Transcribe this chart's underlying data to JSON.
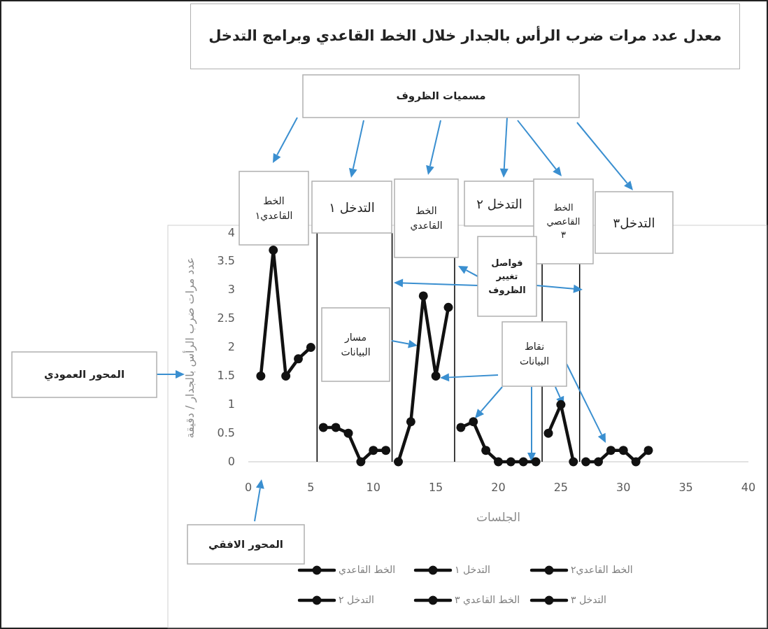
{
  "chart_data": {
    "type": "line",
    "title": "معدل عدد مرات ضرب الرأس بالجدار خلال الخط القاعدي وبرامج التدخل",
    "xlabel": "الجلسات",
    "ylabel": "عدد مرات ضرب الرأس بالجدار / دقيقة",
    "xlim": [
      0,
      40
    ],
    "xticks": [
      0,
      5,
      10,
      15,
      20,
      25,
      30,
      35,
      40
    ],
    "ylim": [
      0,
      4
    ],
    "yticks": [
      0,
      0.5,
      1,
      1.5,
      2,
      2.5,
      3,
      3.5,
      4
    ],
    "series": [
      {
        "name": "الخط القاعدي",
        "color": "#111111",
        "x": [
          1,
          2,
          3,
          4,
          5
        ],
        "values": [
          1.5,
          3.7,
          1.5,
          1.8,
          2
        ]
      },
      {
        "name": "التدخل ١",
        "color": "#111111",
        "x": [
          6,
          7,
          8,
          9,
          10,
          11
        ],
        "values": [
          0.6,
          0.6,
          0.5,
          0,
          0.2,
          0.2
        ]
      },
      {
        "name": "الخط القاعدي٢",
        "color": "#111111",
        "x": [
          12,
          13,
          14,
          15,
          16
        ],
        "values": [
          0,
          0.7,
          2.9,
          1.5,
          2.7
        ]
      },
      {
        "name": "التدخل ٢",
        "color": "#111111",
        "x": [
          17,
          18,
          19,
          20,
          21,
          22,
          23
        ],
        "values": [
          0.6,
          0.7,
          0.2,
          0,
          0,
          0,
          0
        ]
      },
      {
        "name": "الخط القاعدي ٣",
        "color": "#111111",
        "x": [
          24,
          25,
          26
        ],
        "values": [
          0.5,
          1,
          0
        ]
      },
      {
        "name": "التدخل ٣",
        "color": "#111111",
        "x": [
          27,
          28,
          29,
          30,
          31,
          32
        ],
        "values": [
          0,
          0,
          0.2,
          0.2,
          0,
          0.2
        ]
      }
    ],
    "ref_lines": [
      {
        "axis": "x",
        "value": 5.5,
        "color": "#000000"
      },
      {
        "axis": "x",
        "value": 11.5,
        "color": "#000000"
      },
      {
        "axis": "x",
        "value": 16.5,
        "color": "#000000"
      },
      {
        "axis": "x",
        "value": 23.5,
        "color": "#000000"
      },
      {
        "axis": "x",
        "value": 26.5,
        "color": "#000000"
      }
    ],
    "annotations": [
      "مسميات الظروف",
      "الخط القاعدي١",
      "التدخل ١",
      "الخط القاعدي",
      "التدخل ٢",
      "الخط القاعصي ٣",
      "التدخل٣",
      "فواصل تغيير الظروف",
      "مسار البيانات",
      "نقاط البيانات",
      "المحور العمودي",
      "المحور الافقي"
    ],
    "legend": "bottom",
    "marker": "circle",
    "grid": false
  }
}
